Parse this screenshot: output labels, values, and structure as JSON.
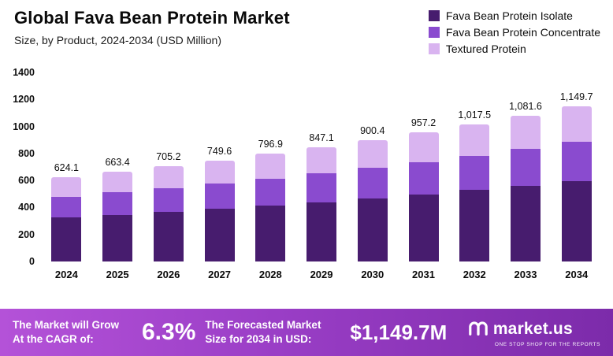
{
  "header": {
    "title": "Global Fava Bean Protein Market",
    "subtitle": "Size, by Product, 2024-2034 (USD Million)"
  },
  "legend": [
    {
      "label": "Fava Bean Protein Isolate",
      "color": "#471c6e"
    },
    {
      "label": "Fava Bean Protein Concentrate",
      "color": "#8a4bcf"
    },
    {
      "label": "Textured Protein",
      "color": "#d9b4f0"
    }
  ],
  "chart_data": {
    "type": "bar",
    "stacked": true,
    "title": "Global Fava Bean Protein Market",
    "subtitle": "Size, by Product, 2024-2034 (USD Million)",
    "xlabel": "",
    "ylabel": "",
    "ylim": [
      0,
      1400
    ],
    "yticks": [
      0,
      200,
      400,
      600,
      800,
      1000,
      1200,
      1400
    ],
    "grid": false,
    "legend_position": "top-right",
    "categories": [
      "2024",
      "2025",
      "2026",
      "2027",
      "2028",
      "2029",
      "2030",
      "2031",
      "2032",
      "2033",
      "2034"
    ],
    "series": [
      {
        "name": "Fava Bean Protein Isolate",
        "color": "#471c6e",
        "values": [
          324.5,
          345.0,
          366.7,
          389.8,
          414.4,
          440.5,
          468.2,
          497.7,
          529.1,
          562.4,
          597.8
        ]
      },
      {
        "name": "Fava Bean Protein Concentrate",
        "color": "#8a4bcf",
        "values": [
          156.0,
          165.9,
          176.3,
          187.4,
          199.2,
          211.8,
          225.1,
          239.3,
          254.4,
          270.4,
          287.4
        ]
      },
      {
        "name": "Textured Protein",
        "color": "#d9b4f0",
        "values": [
          143.6,
          152.5,
          162.2,
          172.4,
          183.3,
          194.8,
          207.1,
          220.2,
          234.0,
          248.8,
          264.5
        ]
      }
    ],
    "totals": [
      624.1,
      663.4,
      705.2,
      749.6,
      796.9,
      847.1,
      900.4,
      957.2,
      1017.5,
      1081.6,
      1149.7
    ],
    "total_labels": [
      "624.1",
      "663.4",
      "705.2",
      "749.6",
      "796.9",
      "847.1",
      "900.4",
      "957.2",
      "1,017.5",
      "1,081.6",
      "1,149.7"
    ]
  },
  "footer": {
    "cagr_label": "The Market will Grow At the CAGR of:",
    "cagr_value": "6.3%",
    "forecast_label": "The Forecasted Market Size for 2034 in USD:",
    "forecast_value": "$1,149.7M",
    "brand": "market.us",
    "brand_tagline": "ONE STOP SHOP FOR THE REPORTS"
  }
}
